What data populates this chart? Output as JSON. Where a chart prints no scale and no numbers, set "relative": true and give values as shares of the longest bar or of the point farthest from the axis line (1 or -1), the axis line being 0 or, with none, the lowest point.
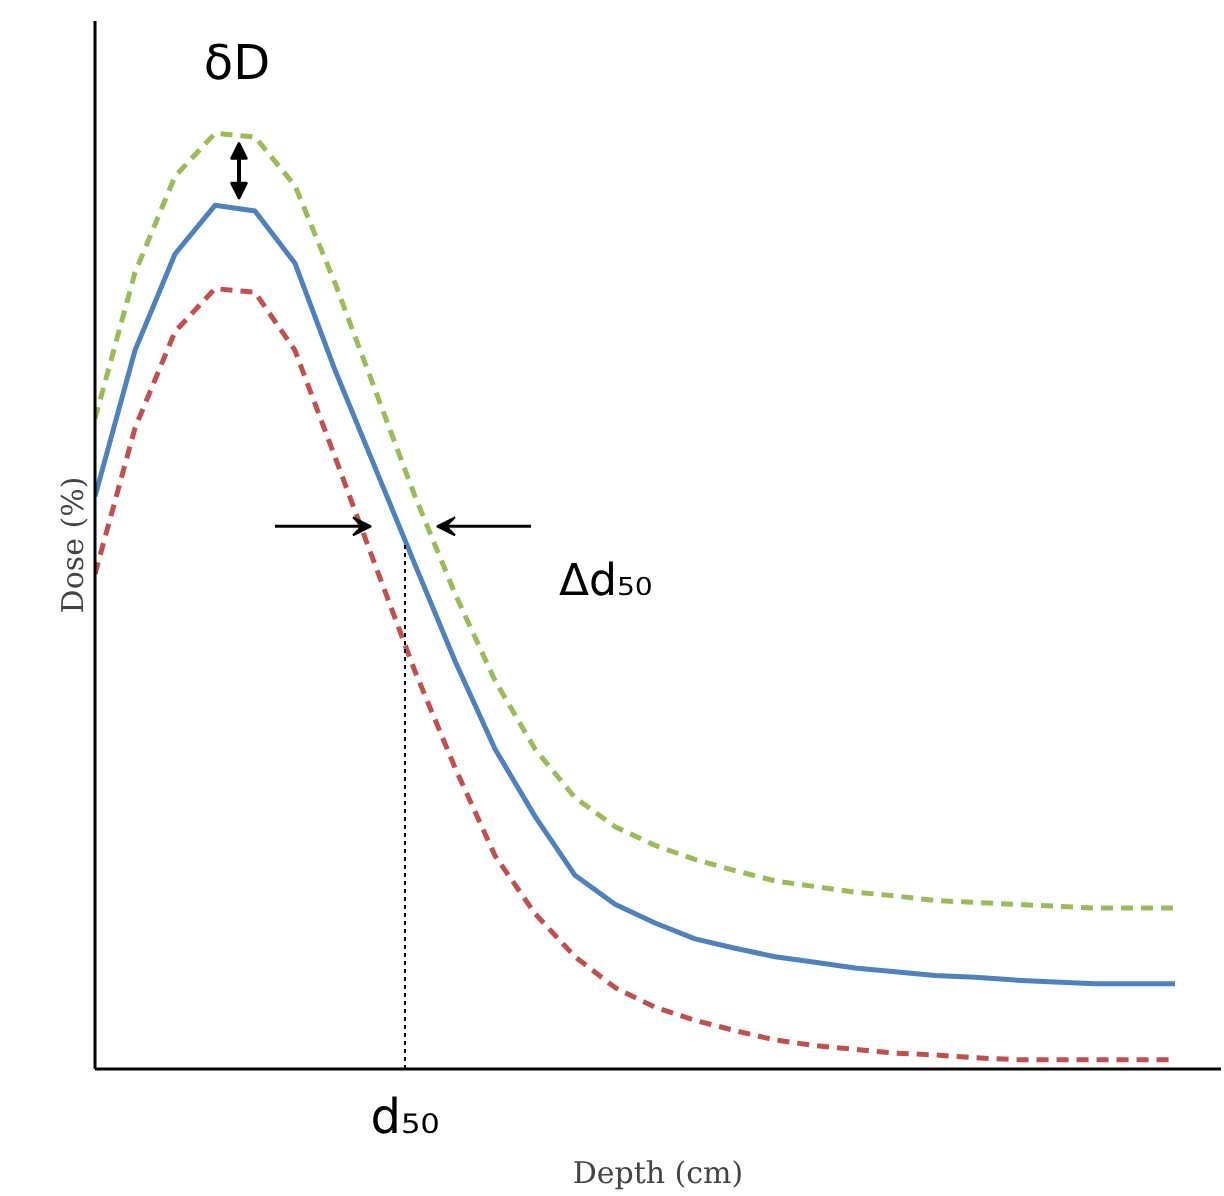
{
  "chart_data": {
    "type": "line",
    "relative": true,
    "xlabel": "Depth (cm)",
    "ylabel": "Dose (%)",
    "categories": [
      null,
      null,
      null,
      null,
      null,
      null,
      null,
      null,
      null,
      null,
      null,
      null,
      null,
      null,
      null,
      null,
      null,
      null,
      null,
      null,
      null,
      null,
      null,
      null,
      null,
      null,
      null,
      null
    ],
    "series": [
      {
        "color": "#9bbb59",
        "line_style": "dashed",
        "values": [
          0.695,
          0.851,
          0.954,
          1,
          0.996,
          0.944,
          0.84,
          0.726,
          0.612,
          0.508,
          0.415,
          0.342,
          0.29,
          0.259,
          0.239,
          0.224,
          0.212,
          0.201,
          0.195,
          0.189,
          0.185,
          0.18,
          0.178,
          0.176,
          0.174,
          0.172,
          0.172,
          0.172
        ]
      },
      {
        "color": "#4f81bd",
        "line_style": "solid",
        "values": [
          0.612,
          0.768,
          0.871,
          0.923,
          0.917,
          0.861,
          0.747,
          0.643,
          0.539,
          0.436,
          0.342,
          0.27,
          0.207,
          0.176,
          0.156,
          0.139,
          0.129,
          0.12,
          0.114,
          0.108,
          0.104,
          0.1,
          0.098,
          0.095,
          0.093,
          0.091,
          0.091,
          0.091
        ]
      },
      {
        "color": "#c0504d",
        "line_style": "dashed",
        "values": [
          0.529,
          0.685,
          0.788,
          0.834,
          0.83,
          0.768,
          0.654,
          0.539,
          0.425,
          0.322,
          0.228,
          0.166,
          0.12,
          0.087,
          0.066,
          0.052,
          0.041,
          0.031,
          0.025,
          0.021,
          0.017,
          0.015,
          0.012,
          0.01,
          0.01,
          0.01,
          0.01,
          0.01
        ]
      }
    ],
    "annotations": [
      "δD",
      "Δd₅₀",
      "d₅₀"
    ]
  }
}
